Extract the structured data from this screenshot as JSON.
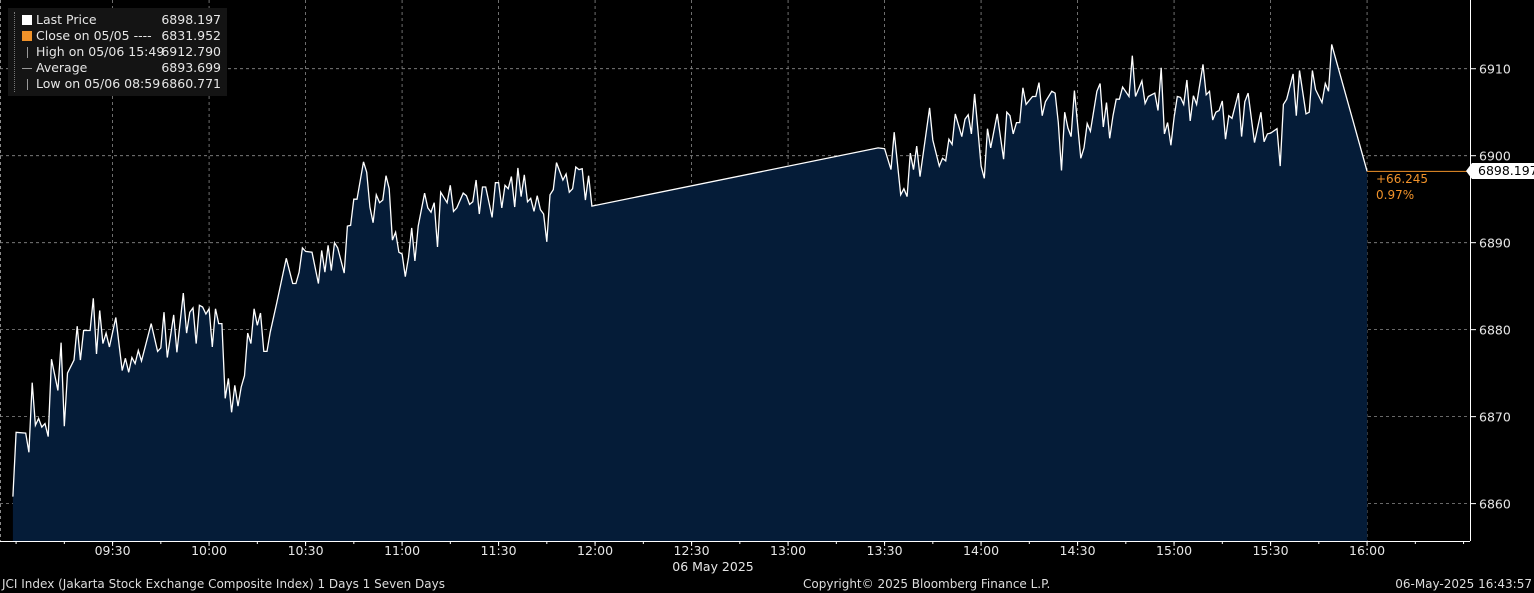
{
  "legend": {
    "items": [
      {
        "label": "Last Price",
        "value": "6898.197",
        "icon": "white-square-icon"
      },
      {
        "label": "Close on 05/05 ----",
        "value": "6831.952",
        "icon": "orange-square-icon"
      },
      {
        "label": "High on 05/06 15:49",
        "value": "6912.790",
        "icon": "high-marker-icon"
      },
      {
        "label": "Average",
        "value": "6893.699",
        "icon": "average-marker-icon"
      },
      {
        "label": "Low on 05/06 08:59",
        "value": "6860.771",
        "icon": "low-marker-icon"
      }
    ]
  },
  "last_price_tag": "6898.197",
  "change": {
    "abs": "+66.245",
    "pct": "0.97%"
  },
  "colors": {
    "line": "#ffffff",
    "area": "#051c38",
    "close": "#f0922a",
    "grid": "#8a8a8a",
    "background": "#000000"
  },
  "footer": {
    "left": "JCI Index (Jakarta Stock Exchange Composite Index) 1 Days 1 Seven Days",
    "center": "Copyright© 2025 Bloomberg Finance L.P.",
    "right": "06-May-2025 16:43:57"
  },
  "chart_data": {
    "type": "area",
    "title": "",
    "xlabel": "06 May 2025",
    "ylabel": "",
    "xlim": [
      "08:55",
      "16:32"
    ],
    "ylim": [
      6855.7,
      6917.9
    ],
    "grid": true,
    "legend_placement": "top-left",
    "y_axis_side": "right",
    "x_ticks": [
      "09:30",
      "10:00",
      "10:30",
      "11:00",
      "11:30",
      "12:00",
      "12:30",
      "13:00",
      "13:30",
      "14:00",
      "14:30",
      "15:00",
      "15:30",
      "16:00"
    ],
    "y_ticks": [
      6860,
      6870,
      6880,
      6890,
      6900,
      6910
    ],
    "last_value": 6898.197,
    "series": [
      {
        "name": "Last Price",
        "points": [
          [
            "08:59",
            6860.8
          ],
          [
            "09:00",
            6868.2
          ],
          [
            "09:03",
            6868.1
          ],
          [
            "09:04",
            6865.9
          ],
          [
            "09:05",
            6873.9
          ],
          [
            "09:06",
            6869.0
          ],
          [
            "09:07",
            6869.8
          ],
          [
            "09:08",
            6868.8
          ],
          [
            "09:09",
            6869.2
          ],
          [
            "09:10",
            6867.7
          ],
          [
            "09:11",
            6876.6
          ],
          [
            "09:13",
            6873.0
          ],
          [
            "09:14",
            6878.5
          ],
          [
            "09:15",
            6868.9
          ],
          [
            "09:16",
            6875.0
          ],
          [
            "09:18",
            6876.5
          ],
          [
            "09:19",
            6880.4
          ],
          [
            "09:20",
            6876.5
          ],
          [
            "09:21",
            6879.9
          ],
          [
            "09:23",
            6879.9
          ],
          [
            "09:24",
            6883.6
          ],
          [
            "09:25",
            6877.2
          ],
          [
            "09:26",
            6882.2
          ],
          [
            "09:27",
            6878.4
          ],
          [
            "09:28",
            6879.6
          ],
          [
            "09:29",
            6878.0
          ],
          [
            "09:31",
            6881.4
          ],
          [
            "09:33",
            6875.3
          ],
          [
            "09:34",
            6876.7
          ],
          [
            "09:35",
            6875.1
          ],
          [
            "09:36",
            6876.8
          ],
          [
            "09:37",
            6876.1
          ],
          [
            "09:38",
            6877.6
          ],
          [
            "09:39",
            6876.4
          ],
          [
            "09:42",
            6880.7
          ],
          [
            "09:44",
            6877.5
          ],
          [
            "09:45",
            6877.9
          ],
          [
            "09:46",
            6882.0
          ],
          [
            "09:47",
            6876.8
          ],
          [
            "09:49",
            6881.7
          ],
          [
            "09:50",
            6877.4
          ],
          [
            "09:52",
            6884.2
          ],
          [
            "09:53",
            6879.6
          ],
          [
            "09:54",
            6882.0
          ],
          [
            "09:55",
            6882.5
          ],
          [
            "09:56",
            6878.4
          ],
          [
            "09:57",
            6882.8
          ],
          [
            "09:58",
            6882.6
          ],
          [
            "09:59",
            6881.8
          ],
          [
            "10:00",
            6882.4
          ],
          [
            "10:01",
            6878.0
          ],
          [
            "10:02",
            6882.4
          ],
          [
            "10:03",
            6880.7
          ],
          [
            "10:04",
            6880.7
          ],
          [
            "10:05",
            6872.1
          ],
          [
            "10:06",
            6874.4
          ],
          [
            "10:07",
            6870.5
          ],
          [
            "10:08",
            6873.6
          ],
          [
            "10:09",
            6871.2
          ],
          [
            "10:10",
            6873.4
          ],
          [
            "10:11",
            6874.7
          ],
          [
            "10:12",
            6879.6
          ],
          [
            "10:13",
            6878.4
          ],
          [
            "10:14",
            6882.4
          ],
          [
            "10:15",
            6880.5
          ],
          [
            "10:16",
            6881.9
          ],
          [
            "10:17",
            6877.5
          ],
          [
            "10:18",
            6877.5
          ],
          [
            "10:19",
            6879.7
          ],
          [
            "10:21",
            6883.0
          ],
          [
            "10:23",
            6886.5
          ],
          [
            "10:24",
            6888.2
          ],
          [
            "10:26",
            6885.3
          ],
          [
            "10:27",
            6885.3
          ],
          [
            "10:28",
            6886.6
          ],
          [
            "10:29",
            6889.4
          ],
          [
            "10:30",
            6889.0
          ],
          [
            "10:32",
            6888.9
          ],
          [
            "10:34",
            6885.3
          ],
          [
            "10:35",
            6889.1
          ],
          [
            "10:36",
            6886.6
          ],
          [
            "10:37",
            6889.7
          ],
          [
            "10:38",
            6886.8
          ],
          [
            "10:39",
            6890.0
          ],
          [
            "10:40",
            6889.4
          ],
          [
            "10:42",
            6886.5
          ],
          [
            "10:43",
            6891.9
          ],
          [
            "10:44",
            6892.0
          ],
          [
            "10:45",
            6895.0
          ],
          [
            "10:46",
            6895.0
          ],
          [
            "10:48",
            6899.3
          ],
          [
            "10:49",
            6898.1
          ],
          [
            "10:50",
            6894.1
          ],
          [
            "10:51",
            6892.3
          ],
          [
            "10:52",
            6895.5
          ],
          [
            "10:53",
            6894.6
          ],
          [
            "10:54",
            6894.9
          ],
          [
            "10:55",
            6897.7
          ],
          [
            "10:56",
            6896.2
          ],
          [
            "10:57",
            6890.3
          ],
          [
            "10:58",
            6891.2
          ],
          [
            "10:59",
            6888.9
          ],
          [
            "11:00",
            6888.7
          ],
          [
            "11:01",
            6886.1
          ],
          [
            "11:02",
            6888.3
          ],
          [
            "11:03",
            6891.7
          ],
          [
            "11:04",
            6887.9
          ],
          [
            "11:05",
            6891.9
          ],
          [
            "11:07",
            6895.7
          ],
          [
            "11:08",
            6894.0
          ],
          [
            "11:09",
            6893.5
          ],
          [
            "11:10",
            6894.6
          ],
          [
            "11:11",
            6889.5
          ],
          [
            "11:12",
            6895.8
          ],
          [
            "11:14",
            6894.6
          ],
          [
            "11:15",
            6896.6
          ],
          [
            "11:16",
            6893.6
          ],
          [
            "11:17",
            6894.0
          ],
          [
            "11:19",
            6895.7
          ],
          [
            "11:20",
            6895.4
          ],
          [
            "11:21",
            6894.4
          ],
          [
            "11:22",
            6894.7
          ],
          [
            "11:23",
            6897.2
          ],
          [
            "11:24",
            6893.3
          ],
          [
            "11:25",
            6896.4
          ],
          [
            "11:26",
            6896.4
          ],
          [
            "11:28",
            6892.9
          ],
          [
            "11:29",
            6896.9
          ],
          [
            "11:30",
            6896.9
          ],
          [
            "11:31",
            6894.0
          ],
          [
            "11:32",
            6896.6
          ],
          [
            "11:33",
            6896.2
          ],
          [
            "11:34",
            6897.6
          ],
          [
            "11:35",
            6894.1
          ],
          [
            "11:36",
            6898.6
          ],
          [
            "11:37",
            6895.3
          ],
          [
            "11:38",
            6897.8
          ],
          [
            "11:39",
            6894.7
          ],
          [
            "11:40",
            6895.1
          ],
          [
            "11:41",
            6893.6
          ],
          [
            "11:42",
            6895.4
          ],
          [
            "11:43",
            6893.8
          ],
          [
            "11:44",
            6893.3
          ],
          [
            "11:45",
            6890.1
          ],
          [
            "11:46",
            6895.5
          ],
          [
            "11:47",
            6896.1
          ],
          [
            "11:48",
            6899.2
          ],
          [
            "11:50",
            6897.2
          ],
          [
            "11:51",
            6897.9
          ],
          [
            "11:52",
            6895.8
          ],
          [
            "11:53",
            6896.2
          ],
          [
            "11:54",
            6898.7
          ],
          [
            "11:55",
            6898.4
          ],
          [
            "11:56",
            6898.5
          ],
          [
            "11:57",
            6894.9
          ],
          [
            "11:58",
            6897.7
          ],
          [
            "11:59",
            6894.2
          ],
          [
            "13:28",
            6900.9
          ],
          [
            "13:30",
            6900.8
          ],
          [
            "13:32",
            6898.4
          ],
          [
            "13:33",
            6902.7
          ],
          [
            "13:35",
            6895.5
          ],
          [
            "13:36",
            6896.2
          ],
          [
            "13:37",
            6895.3
          ],
          [
            "13:38",
            6900.3
          ],
          [
            "13:39",
            6898.4
          ],
          [
            "13:40",
            6901.1
          ],
          [
            "13:41",
            6897.6
          ],
          [
            "13:44",
            6905.5
          ],
          [
            "13:45",
            6901.8
          ],
          [
            "13:47",
            6898.8
          ],
          [
            "13:48",
            6899.7
          ],
          [
            "13:49",
            6899.4
          ],
          [
            "13:50",
            6901.9
          ],
          [
            "13:51",
            6901.3
          ],
          [
            "13:52",
            6904.8
          ],
          [
            "13:54",
            6902.2
          ],
          [
            "13:55",
            6904.2
          ],
          [
            "13:56",
            6904.7
          ],
          [
            "13:57",
            6902.5
          ],
          [
            "13:58",
            6907.1
          ],
          [
            "13:59",
            6903.0
          ],
          [
            "14:00",
            6898.8
          ],
          [
            "14:01",
            6897.4
          ],
          [
            "14:02",
            6903.1
          ],
          [
            "14:03",
            6900.9
          ],
          [
            "14:05",
            6904.8
          ],
          [
            "14:07",
            6899.6
          ],
          [
            "14:08",
            6905.0
          ],
          [
            "14:09",
            6904.6
          ],
          [
            "14:10",
            6902.5
          ],
          [
            "14:11",
            6903.8
          ],
          [
            "14:12",
            6903.8
          ],
          [
            "14:13",
            6907.8
          ],
          [
            "14:14",
            6905.9
          ],
          [
            "14:16",
            6906.8
          ],
          [
            "14:17",
            6906.8
          ],
          [
            "14:18",
            6908.4
          ],
          [
            "14:19",
            6904.6
          ],
          [
            "14:20",
            6906.2
          ],
          [
            "14:22",
            6907.4
          ],
          [
            "14:23",
            6907.2
          ],
          [
            "14:24",
            6903.8
          ],
          [
            "14:25",
            6898.3
          ],
          [
            "14:26",
            6905.0
          ],
          [
            "14:27",
            6903.2
          ],
          [
            "14:28",
            6902.2
          ],
          [
            "14:29",
            6907.5
          ],
          [
            "14:31",
            6899.7
          ],
          [
            "14:32",
            6900.9
          ],
          [
            "14:33",
            6903.7
          ],
          [
            "14:34",
            6902.8
          ],
          [
            "14:36",
            6907.4
          ],
          [
            "14:37",
            6908.3
          ],
          [
            "14:38",
            6903.3
          ],
          [
            "14:39",
            6906.1
          ],
          [
            "14:40",
            6902.0
          ],
          [
            "14:41",
            6904.6
          ],
          [
            "14:42",
            6906.5
          ],
          [
            "14:43",
            6906.5
          ],
          [
            "14:44",
            6907.9
          ],
          [
            "14:46",
            6906.8
          ],
          [
            "14:47",
            6911.5
          ],
          [
            "14:48",
            6906.8
          ],
          [
            "14:50",
            6908.6
          ],
          [
            "14:51",
            6906.0
          ],
          [
            "14:52",
            6906.8
          ],
          [
            "14:54",
            6907.2
          ],
          [
            "14:55",
            6905.2
          ],
          [
            "14:56",
            6910.1
          ],
          [
            "14:57",
            6902.5
          ],
          [
            "14:58",
            6903.8
          ],
          [
            "14:59",
            6901.2
          ],
          [
            "15:00",
            6904.4
          ],
          [
            "15:01",
            6906.8
          ],
          [
            "15:02",
            6906.7
          ],
          [
            "15:03",
            6905.9
          ],
          [
            "15:04",
            6908.7
          ],
          [
            "15:05",
            6904.0
          ],
          [
            "15:06",
            6906.9
          ],
          [
            "15:07",
            6905.9
          ],
          [
            "15:09",
            6910.5
          ],
          [
            "15:10",
            6907.0
          ],
          [
            "15:11",
            6907.4
          ],
          [
            "15:12",
            6904.1
          ],
          [
            "15:13",
            6905.0
          ],
          [
            "15:14",
            6905.2
          ],
          [
            "15:15",
            6906.3
          ],
          [
            "15:16",
            6901.9
          ],
          [
            "15:17",
            6904.6
          ],
          [
            "15:18",
            6904.3
          ],
          [
            "15:20",
            6907.2
          ],
          [
            "15:21",
            6902.2
          ],
          [
            "15:22",
            6906.2
          ],
          [
            "15:23",
            6907.2
          ],
          [
            "15:25",
            6901.5
          ],
          [
            "15:27",
            6905.0
          ],
          [
            "15:28",
            6901.6
          ],
          [
            "15:29",
            6902.5
          ],
          [
            "15:30",
            6902.6
          ],
          [
            "15:32",
            6903.1
          ],
          [
            "15:33",
            6898.8
          ],
          [
            "15:34",
            6905.9
          ],
          [
            "15:35",
            6906.5
          ],
          [
            "15:37",
            6909.4
          ],
          [
            "15:38",
            6904.6
          ],
          [
            "15:39",
            6909.8
          ],
          [
            "15:41",
            6904.8
          ],
          [
            "15:42",
            6905.0
          ],
          [
            "15:43",
            6909.8
          ],
          [
            "15:44",
            6907.6
          ],
          [
            "15:46",
            6906.1
          ],
          [
            "15:47",
            6908.3
          ],
          [
            "15:48",
            6907.4
          ],
          [
            "15:49",
            6912.8
          ],
          [
            "16:00",
            6898.2
          ]
        ]
      }
    ]
  }
}
